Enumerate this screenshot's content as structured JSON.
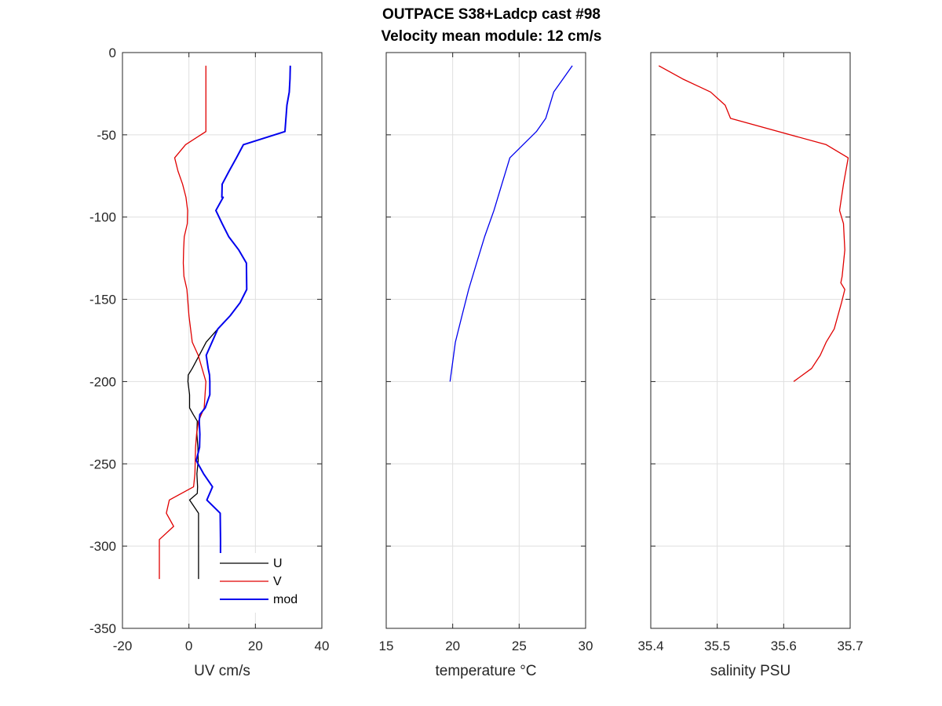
{
  "title_line1": "OUTPACE S38+Ladcp cast #98",
  "title_line2": "Velocity mean module:  12 cm/s",
  "chart_data": [
    {
      "type": "line",
      "xlabel": "UV cm/s",
      "ylabel": "",
      "xlim": [
        -20,
        40
      ],
      "ylim": [
        -350,
        0
      ],
      "xticks": [
        -20,
        0,
        20,
        40
      ],
      "yticks": [
        0,
        -50,
        -100,
        -150,
        -200,
        -250,
        -300,
        -350
      ],
      "grid": true,
      "legend_position": "bottom-right",
      "series": [
        {
          "name": "U",
          "color": "#000000",
          "x": [
            30.5,
            30.4,
            30.2,
            29.5,
            28.9,
            16.4,
            14.3,
            12.1,
            10.0,
            9.9,
            10.3,
            8.1,
            10.0,
            12.0,
            15.0,
            17.3,
            17.4,
            15.4,
            12.4,
            8.7,
            5.2,
            3.1,
            1.0,
            -0.2,
            -0.3,
            0.2,
            0.2,
            1.3,
            2.5,
            2.4,
            2.7,
            2.8,
            2.4,
            2.6,
            2.5,
            0.2,
            2.9,
            2.9,
            2.9,
            2.9
          ],
          "y": [
            -8,
            -16,
            -24,
            -32,
            -48,
            -56,
            -64,
            -72,
            -80,
            -88,
            -88,
            -96,
            -104,
            -112,
            -120,
            -128,
            -144,
            -152,
            -160,
            -168,
            -176,
            -184,
            -192,
            -196,
            -200,
            -208,
            -216,
            -220,
            -224,
            -232,
            -240,
            -248,
            -256,
            -264,
            -268,
            -272,
            -280,
            -296,
            -312,
            -320
          ]
        },
        {
          "name": "V",
          "color": "#e00000",
          "x": [
            5.1,
            5.1,
            5.1,
            5.1,
            5.1,
            -1.0,
            -4.3,
            -3.3,
            -1.9,
            -0.9,
            -0.4,
            -0.5,
            -1.4,
            -1.6,
            -1.7,
            -1.5,
            -0.6,
            -0.3,
            0.0,
            0.5,
            1.0,
            2.8,
            5.1,
            4.6,
            2.9,
            2.3,
            2.0,
            1.9,
            1.8,
            1.4,
            -5.9,
            -6.8,
            -4.6,
            -8.9,
            -8.9,
            -8.9
          ],
          "y": [
            -8,
            -16,
            -32,
            -40,
            -48,
            -56,
            -64,
            -72,
            -80,
            -88,
            -96,
            -104,
            -112,
            -120,
            -128,
            -136,
            -144,
            -152,
            -160,
            -168,
            -176,
            -184,
            -200,
            -216,
            -224,
            -232,
            -240,
            -248,
            -256,
            -264,
            -272,
            -280,
            -288,
            -296,
            -312,
            -320
          ]
        },
        {
          "name": "mod",
          "color": "#0000ee",
          "x": [
            30.5,
            30.4,
            30.2,
            29.5,
            28.9,
            16.4,
            14.3,
            12.1,
            10.0,
            9.9,
            10.3,
            8.1,
            10.0,
            12.0,
            15.0,
            17.3,
            17.4,
            15.4,
            12.4,
            8.7,
            5.2,
            5.8,
            6.2,
            6.3,
            6.3,
            4.9,
            3.3,
            3.1,
            3.3,
            3.2,
            2.2,
            4.4,
            7.1,
            5.4,
            9.4,
            9.5,
            9.5,
            9.5
          ],
          "y": [
            -8,
            -16,
            -24,
            -32,
            -48,
            -56,
            -64,
            -72,
            -80,
            -88,
            -88,
            -96,
            -104,
            -112,
            -120,
            -128,
            -144,
            -152,
            -160,
            -168,
            -184,
            -192,
            -196,
            -200,
            -208,
            -216,
            -220,
            -224,
            -232,
            -240,
            -248,
            -256,
            -264,
            -272,
            -280,
            -296,
            -312,
            -320
          ]
        }
      ]
    },
    {
      "type": "line",
      "xlabel": "temperature °C",
      "ylabel": "",
      "xlim": [
        15,
        30
      ],
      "ylim": [
        -350,
        0
      ],
      "xticks": [
        15,
        20,
        25,
        30
      ],
      "yticks": [
        0,
        -50,
        -100,
        -150,
        -200,
        -250,
        -300,
        -350
      ],
      "grid": true,
      "series": [
        {
          "color": "#0000ee",
          "x": [
            29.0,
            28.3,
            27.6,
            27.0,
            26.3,
            24.3,
            23.7,
            23.1,
            22.4,
            21.8,
            21.2,
            20.7,
            20.2,
            19.8
          ],
          "y": [
            -8,
            -16,
            -24,
            -40,
            -48,
            -64,
            -80,
            -96,
            -112,
            -128,
            -144,
            -160,
            -176,
            -200
          ]
        }
      ]
    },
    {
      "type": "line",
      "xlabel": "salinity PSU",
      "ylabel": "",
      "xlim": [
        35.4,
        35.7
      ],
      "ylim": [
        -350,
        0
      ],
      "xticks": [
        35.4,
        35.5,
        35.6,
        35.7
      ],
      "xtick_labels": [
        "35.4",
        "35.5",
        "35.6",
        "35.7"
      ],
      "yticks": [
        0,
        -50,
        -100,
        -150,
        -200,
        -250,
        -300,
        -350
      ],
      "grid": true,
      "series": [
        {
          "color": "#e00000",
          "x": [
            35.412,
            35.448,
            35.49,
            35.512,
            35.52,
            35.664,
            35.697,
            35.69,
            35.684,
            35.69,
            35.692,
            35.688,
            35.686,
            35.692,
            35.687,
            35.676,
            35.664,
            35.655,
            35.642,
            35.615
          ],
          "y": [
            -8,
            -16,
            -24,
            -32,
            -40,
            -56,
            -64,
            -80,
            -96,
            -104,
            -120,
            -136,
            -140,
            -144,
            -152,
            -168,
            -176,
            -184,
            -192,
            -200
          ]
        }
      ]
    }
  ]
}
